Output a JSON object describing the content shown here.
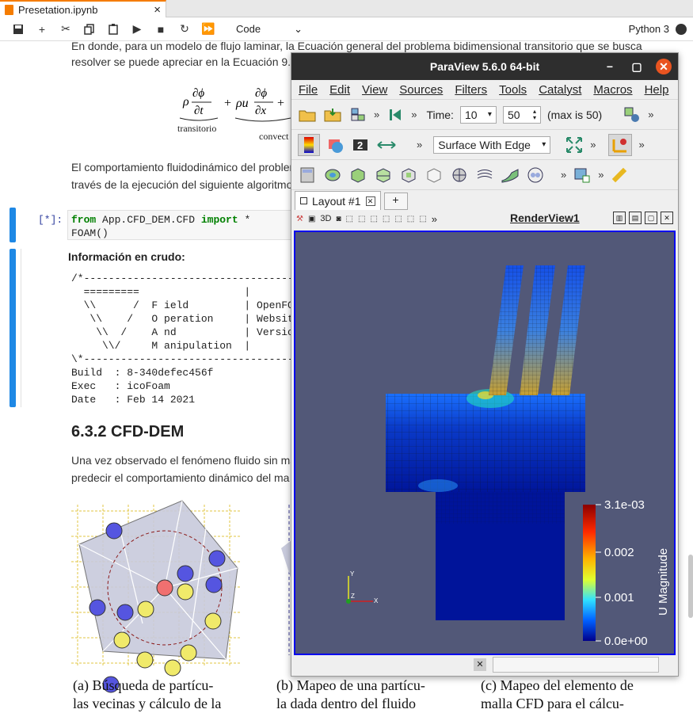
{
  "tab": {
    "title": "Presetation.ipynb",
    "close": "×"
  },
  "toolbar": {
    "cell_type": "Code",
    "kernel": "Python 3"
  },
  "notebook": {
    "para1_line1": "En donde, para un modelo de flujo laminar, la Ecuación general del problema bidimensional transitorio que se busca",
    "para1_line2": "resolver se puede apreciar en la Ecuación 9.",
    "eq_transitorio": "transitorio",
    "eq_convect": "convect",
    "para2_line1": "El comportamiento fluidodinámico del problema",
    "para2_line2": "través de la ejecución del siguiente algoritmo",
    "prompt": "[*]:",
    "code_line1_kw": "from",
    "code_line1_mod": " App.CFD_DEM.CFD ",
    "code_line1_kw2": "import",
    "code_line1_rest": " *",
    "code_line2": "FOAM()",
    "output_heading": "Información en crudo:",
    "output_text": "/*----------------------------------\n  =========                 |\n  \\\\      /  F ield         | OpenFO\n   \\\\    /   O peration     | Websit\n    \\\\  /    A nd           | Versio\n     \\\\/     M anipulation  |\n\\*----------------------------------\nBuild  : 8-340defec456f\nExec   : icoFoam\nDate   : Feb 14 2021",
    "section_title": "6.3.2 CFD-DEM",
    "para3_line1": "Una vez observado el fenómeno fluido sin ma",
    "para3_line2": "predecir el comportamiento dinámico del ma",
    "cap_a1": "(a) Búsqueda de partícu-",
    "cap_a2": "las vecinas y cálculo de la",
    "cap_b1": "(b) Mapeo de una partícu-",
    "cap_b2": "la dada dentro del fluido",
    "cap_c1": "(c) Mapeo del elemento de",
    "cap_c2": "malla CFD para el cálcu-"
  },
  "paraview": {
    "title": "ParaView 5.6.0 64-bit",
    "menu": [
      "File",
      "Edit",
      "View",
      "Sources",
      "Filters",
      "Tools",
      "Catalyst",
      "Macros",
      "Help"
    ],
    "time_label": "Time:",
    "time_value": "10",
    "timestep_value": "50",
    "max_label": "(max is 50)",
    "representation": "Surface With Edge",
    "layout_tab": "Layout #1",
    "layout_add": "+",
    "view_name": "RenderView1",
    "view_3d": "3D",
    "colorbar_title": "U Magnitude",
    "colorbar_ticks": [
      "3.1e-03",
      "0.002",
      "0.001",
      "0.0e+00"
    ],
    "axes": {
      "y": "Y",
      "z": "Z",
      "x": "X"
    }
  }
}
